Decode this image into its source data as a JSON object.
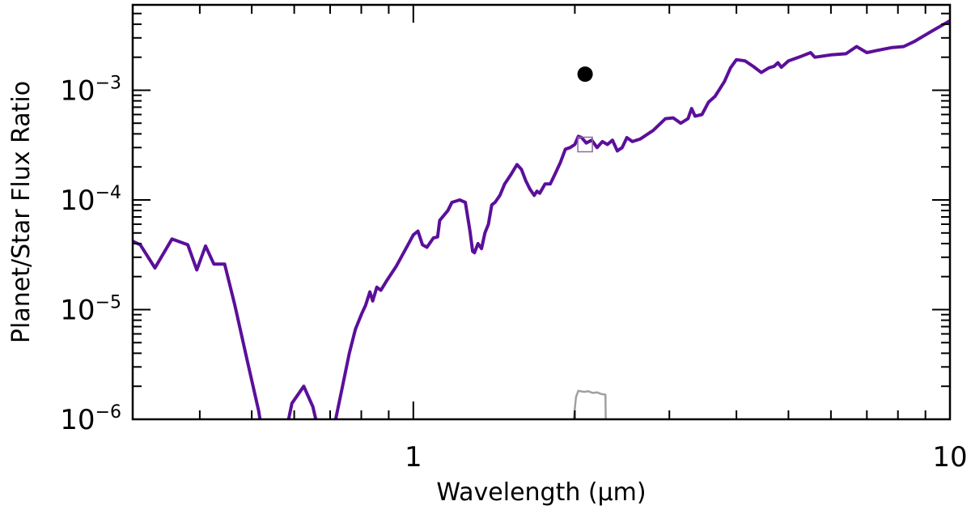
{
  "chart_data": {
    "type": "line",
    "title": "",
    "xlabel": "Wavelength (μm)",
    "ylabel": "Planet/Star Flux Ratio",
    "xscale": "log",
    "yscale": "log",
    "xlim": [
      0.3,
      10
    ],
    "ylim": [
      1e-06,
      0.006
    ],
    "grid": false,
    "x_tick_labels": [
      {
        "value": 1,
        "label": "1"
      },
      {
        "value": 10,
        "label": "10"
      }
    ],
    "y_tick_labels": [
      {
        "value": 1e-06,
        "base": "10",
        "exp": "−6"
      },
      {
        "value": 1e-05,
        "base": "10",
        "exp": "−5"
      },
      {
        "value": 0.0001,
        "base": "10",
        "exp": "−4"
      },
      {
        "value": 0.001,
        "base": "10",
        "exp": "−3"
      }
    ],
    "colors": {
      "model": "#5b0f9a",
      "filter": "#a0a0a0",
      "measurement": "#000000",
      "model_band_point": "#8a6a9a",
      "axes": "#000000"
    },
    "model_spectrum": [
      [
        0.3,
        4.2e-05
      ],
      [
        0.31,
        3.9e-05
      ],
      [
        0.33,
        2.4e-05
      ],
      [
        0.355,
        4.4e-05
      ],
      [
        0.38,
        3.9e-05
      ],
      [
        0.395,
        2.3e-05
      ],
      [
        0.41,
        3.8e-05
      ],
      [
        0.425,
        2.6e-05
      ],
      [
        0.445,
        2.6e-05
      ],
      [
        0.465,
        1.1e-05
      ],
      [
        0.49,
        3.5e-06
      ],
      [
        0.515,
        1.2e-06
      ],
      [
        0.522,
        8e-07
      ],
      [
        0.58,
        8e-07
      ],
      [
        0.594,
        1.4e-06
      ],
      [
        0.625,
        2e-06
      ],
      [
        0.65,
        1.3e-06
      ],
      [
        0.665,
        8e-07
      ],
      [
        0.71,
        8e-07
      ],
      [
        0.738,
        2e-06
      ],
      [
        0.76,
        4e-06
      ],
      [
        0.78,
        6.6e-06
      ],
      [
        0.8,
        9e-06
      ],
      [
        0.815,
        1.1e-05
      ],
      [
        0.83,
        1.45e-05
      ],
      [
        0.84,
        1.2e-05
      ],
      [
        0.855,
        1.6e-05
      ],
      [
        0.87,
        1.5e-05
      ],
      [
        0.89,
        1.8e-05
      ],
      [
        0.93,
        2.5e-05
      ],
      [
        0.98,
        4e-05
      ],
      [
        1.0,
        4.8e-05
      ],
      [
        1.02,
        5.2e-05
      ],
      [
        1.04,
        3.9e-05
      ],
      [
        1.06,
        3.7e-05
      ],
      [
        1.09,
        4.5e-05
      ],
      [
        1.11,
        4.6e-05
      ],
      [
        1.12,
        6.5e-05
      ],
      [
        1.16,
        8e-05
      ],
      [
        1.18,
        9.5e-05
      ],
      [
        1.22,
        0.0001
      ],
      [
        1.25,
        9.5e-05
      ],
      [
        1.275,
        5.2e-05
      ],
      [
        1.29,
        3.4e-05
      ],
      [
        1.3,
        3.3e-05
      ],
      [
        1.32,
        4e-05
      ],
      [
        1.34,
        3.6e-05
      ],
      [
        1.36,
        5e-05
      ],
      [
        1.38,
        6e-05
      ],
      [
        1.4,
        9e-05
      ],
      [
        1.42,
        9.5e-05
      ],
      [
        1.45,
        0.00011
      ],
      [
        1.48,
        0.00014
      ],
      [
        1.52,
        0.00017
      ],
      [
        1.56,
        0.00021
      ],
      [
        1.59,
        0.00019
      ],
      [
        1.62,
        0.00015
      ],
      [
        1.65,
        0.000125
      ],
      [
        1.68,
        0.00011
      ],
      [
        1.7,
        0.00012
      ],
      [
        1.72,
        0.000115
      ],
      [
        1.76,
        0.00014
      ],
      [
        1.8,
        0.00014
      ],
      [
        1.84,
        0.000175
      ],
      [
        1.88,
        0.00022
      ],
      [
        1.92,
        0.00029
      ],
      [
        1.96,
        0.0003
      ],
      [
        2.0,
        0.00032
      ],
      [
        2.03,
        0.00038
      ],
      [
        2.06,
        0.00037
      ],
      [
        2.1,
        0.00033
      ],
      [
        2.15,
        0.00035
      ],
      [
        2.2,
        0.0003
      ],
      [
        2.25,
        0.00034
      ],
      [
        2.3,
        0.00032
      ],
      [
        2.35,
        0.00035
      ],
      [
        2.4,
        0.00028
      ],
      [
        2.45,
        0.0003
      ],
      [
        2.5,
        0.00037
      ],
      [
        2.56,
        0.00034
      ],
      [
        2.65,
        0.00036
      ],
      [
        2.8,
        0.00043
      ],
      [
        2.95,
        0.00055
      ],
      [
        3.05,
        0.00056
      ],
      [
        3.15,
        0.0005
      ],
      [
        3.25,
        0.00055
      ],
      [
        3.3,
        0.00068
      ],
      [
        3.35,
        0.00058
      ],
      [
        3.45,
        0.0006
      ],
      [
        3.55,
        0.00078
      ],
      [
        3.65,
        0.00088
      ],
      [
        3.8,
        0.0012
      ],
      [
        3.9,
        0.0016
      ],
      [
        4.0,
        0.0019
      ],
      [
        4.15,
        0.00185
      ],
      [
        4.3,
        0.00165
      ],
      [
        4.45,
        0.00145
      ],
      [
        4.6,
        0.0016
      ],
      [
        4.7,
        0.00165
      ],
      [
        4.78,
        0.00178
      ],
      [
        4.85,
        0.00162
      ],
      [
        5.0,
        0.00185
      ],
      [
        5.3,
        0.00205
      ],
      [
        5.5,
        0.0022
      ],
      [
        5.6,
        0.002
      ],
      [
        6.0,
        0.0021
      ],
      [
        6.4,
        0.00215
      ],
      [
        6.7,
        0.0025
      ],
      [
        7.0,
        0.0022
      ],
      [
        7.3,
        0.0023
      ],
      [
        7.8,
        0.00245
      ],
      [
        8.2,
        0.0025
      ],
      [
        8.6,
        0.0028
      ],
      [
        9.2,
        0.0034
      ],
      [
        10.0,
        0.0043
      ]
    ],
    "filter_curve": [
      [
        1.88,
        8e-07
      ],
      [
        1.97,
        8e-07
      ],
      [
        1.99,
        1e-06
      ],
      [
        2.01,
        1.6e-06
      ],
      [
        2.03,
        1.82e-06
      ],
      [
        2.08,
        1.78e-06
      ],
      [
        2.12,
        1.8e-06
      ],
      [
        2.16,
        1.74e-06
      ],
      [
        2.2,
        1.76e-06
      ],
      [
        2.24,
        1.7e-06
      ],
      [
        2.28,
        1.68e-06
      ],
      [
        2.285,
        8e-07
      ],
      [
        2.4,
        8e-07
      ]
    ],
    "measurement_point": {
      "x": 2.09,
      "y": 0.0014
    },
    "model_band_point": {
      "x": 2.09,
      "y": 0.00032
    }
  }
}
